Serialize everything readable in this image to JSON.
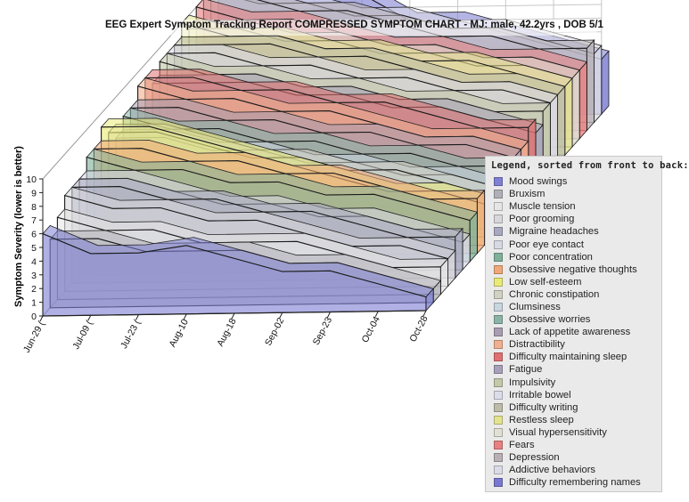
{
  "chart_data": {
    "type": "area",
    "title": "EEG Expert Symptom Tracking Report COMPRESSED SYMPTOM CHART   -   MJ: male, 42.2yrs , DOB 5/1",
    "ylabel": "Symptom Severity (lower is better)",
    "ylim": [
      0,
      10
    ],
    "yticks": [
      "0",
      "1",
      "2",
      "3",
      "4",
      "5",
      "6",
      "7",
      "8",
      "9",
      "10"
    ],
    "categories": [
      "Jun-29 (",
      "Jul-09 (",
      "Jul-23 (",
      "Aug-10",
      "Aug-18",
      "Sep-02",
      "Sep-23",
      "Oct-04",
      "Oct-28"
    ],
    "view": "3d",
    "grid": true,
    "legend_title": "Legend, sorted from front to back:",
    "legend_position": "right",
    "series": [
      {
        "name": "Mood swings",
        "color": "#7f7fd4",
        "values": [
          6,
          4.5,
          4.5,
          5,
          4,
          3,
          3,
          2,
          1
        ]
      },
      {
        "name": "Bruxism",
        "color": "#b0b0b8",
        "values": [
          5,
          5,
          4,
          4,
          4,
          3,
          3,
          2,
          1
        ]
      },
      {
        "name": "Muscle tension",
        "color": "#e6e6e6",
        "values": [
          6,
          5,
          5,
          4,
          4,
          4,
          3,
          2,
          2
        ]
      },
      {
        "name": "Poor grooming",
        "color": "#d7d7dc",
        "values": [
          7,
          6,
          6,
          5,
          5,
          4,
          3,
          3,
          2
        ]
      },
      {
        "name": "Migraine headaches",
        "color": "#a8a8c0",
        "values": [
          7,
          7,
          6,
          6,
          5,
          5,
          4,
          3,
          3
        ]
      },
      {
        "name": "Poor eye contact",
        "color": "#d9d9e6",
        "values": [
          7,
          7,
          6,
          5,
          5,
          4,
          4,
          3,
          2
        ]
      },
      {
        "name": "Poor concentration",
        "color": "#7fb09a",
        "values": [
          8,
          7,
          7,
          6,
          6,
          5,
          5,
          4,
          3
        ]
      },
      {
        "name": "Obsessive negative thoughts",
        "color": "#f0a878",
        "values": [
          8,
          8,
          7,
          7,
          6,
          6,
          5,
          4,
          4
        ]
      },
      {
        "name": "Low self-esteem",
        "color": "#eaea78",
        "values": [
          9,
          9,
          8,
          7,
          6,
          5,
          4,
          4,
          3
        ]
      },
      {
        "name": "Chronic constipation",
        "color": "#d2d2c4",
        "values": [
          8,
          8,
          7,
          6,
          6,
          5,
          5,
          4,
          3
        ]
      },
      {
        "name": "Clumsiness",
        "color": "#c8d6e0",
        "values": [
          7,
          7,
          6,
          6,
          5,
          5,
          4,
          4,
          3
        ]
      },
      {
        "name": "Obsessive worries",
        "color": "#8ab4a8",
        "values": [
          8,
          7,
          7,
          6,
          6,
          5,
          5,
          4,
          4
        ]
      },
      {
        "name": "Lack of appetite awareness",
        "color": "#a89cb0",
        "values": [
          8,
          8,
          7,
          7,
          6,
          6,
          5,
          5,
          4
        ]
      },
      {
        "name": "Distractibility",
        "color": "#f0b090",
        "values": [
          9,
          8,
          8,
          7,
          7,
          6,
          5,
          5,
          4
        ]
      },
      {
        "name": "Difficulty maintaining sleep",
        "color": "#e07070",
        "values": [
          9,
          9,
          8,
          8,
          7,
          7,
          6,
          5,
          5
        ]
      },
      {
        "name": "Fatigue",
        "color": "#a8a0b8",
        "values": [
          8,
          8,
          8,
          7,
          7,
          6,
          6,
          5,
          4
        ]
      },
      {
        "name": "Impulsivity",
        "color": "#c2c8a8",
        "values": [
          9,
          8,
          8,
          7,
          7,
          6,
          6,
          5,
          5
        ]
      },
      {
        "name": "Irritable bowel",
        "color": "#dcdcea",
        "values": [
          9,
          9,
          8,
          8,
          7,
          7,
          6,
          6,
          5
        ]
      },
      {
        "name": "Difficulty writing",
        "color": "#bcbca8",
        "values": [
          9,
          9,
          9,
          8,
          8,
          7,
          6,
          6,
          5
        ]
      },
      {
        "name": "Restless sleep",
        "color": "#e4e490",
        "values": [
          10,
          9,
          9,
          8,
          8,
          7,
          7,
          6,
          5
        ]
      },
      {
        "name": "Visual hypersensitivity",
        "color": "#e0e0d4",
        "values": [
          9,
          9,
          8,
          8,
          7,
          7,
          6,
          6,
          5
        ]
      },
      {
        "name": "Fears",
        "color": "#e88080",
        "values": [
          10,
          9,
          9,
          8,
          7,
          7,
          6,
          6,
          5
        ]
      },
      {
        "name": "Depression",
        "color": "#b8b0b4",
        "values": [
          10,
          10,
          9,
          9,
          8,
          7,
          7,
          6,
          6
        ]
      },
      {
        "name": "Addictive behaviors",
        "color": "#dcdce8",
        "values": [
          10,
          9,
          9,
          8,
          8,
          7,
          7,
          6,
          5
        ]
      },
      {
        "name": "Difficulty remembering names",
        "color": "#7878d0",
        "values": [
          10,
          10,
          10,
          9,
          7,
          7,
          6,
          5,
          4
        ]
      }
    ]
  }
}
